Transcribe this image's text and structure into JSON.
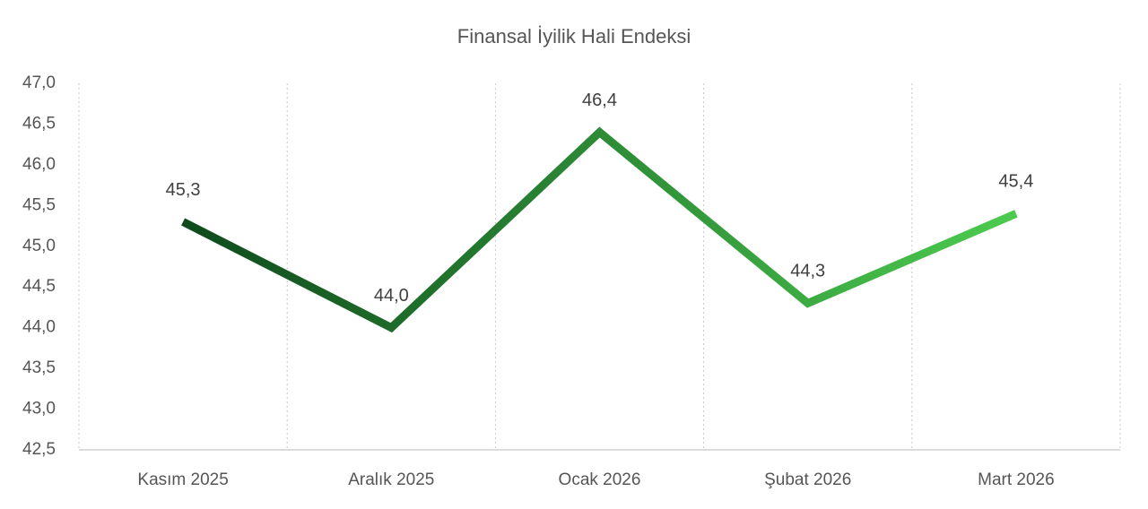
{
  "chart_data": {
    "type": "line",
    "title": "Finansal İyilik Hali Endeksi",
    "categories": [
      "Kasım 2025",
      "Aralık 2025",
      "Ocak 2026",
      "Şubat 2026",
      "Mart 2026"
    ],
    "values": [
      45.3,
      44.0,
      46.4,
      44.3,
      45.4
    ],
    "value_labels": [
      "45,3",
      "44,0",
      "46,4",
      "44,3",
      "45,4"
    ],
    "color_gradient": [
      "#0e4a1d",
      "#4ccb4f"
    ],
    "ylim": [
      42.5,
      47.0
    ],
    "yticks": [
      {
        "value": 42.5,
        "label": "42,5"
      },
      {
        "value": 43.0,
        "label": "43,0"
      },
      {
        "value": 43.5,
        "label": "43,5"
      },
      {
        "value": 44.0,
        "label": "44,0"
      },
      {
        "value": 44.5,
        "label": "44,5"
      },
      {
        "value": 45.0,
        "label": "45,0"
      },
      {
        "value": 45.5,
        "label": "45,5"
      },
      {
        "value": 46.0,
        "label": "46,0"
      },
      {
        "value": 46.5,
        "label": "46,5"
      },
      {
        "value": 47.0,
        "label": "47,0"
      }
    ],
    "vertical_grid": true
  }
}
